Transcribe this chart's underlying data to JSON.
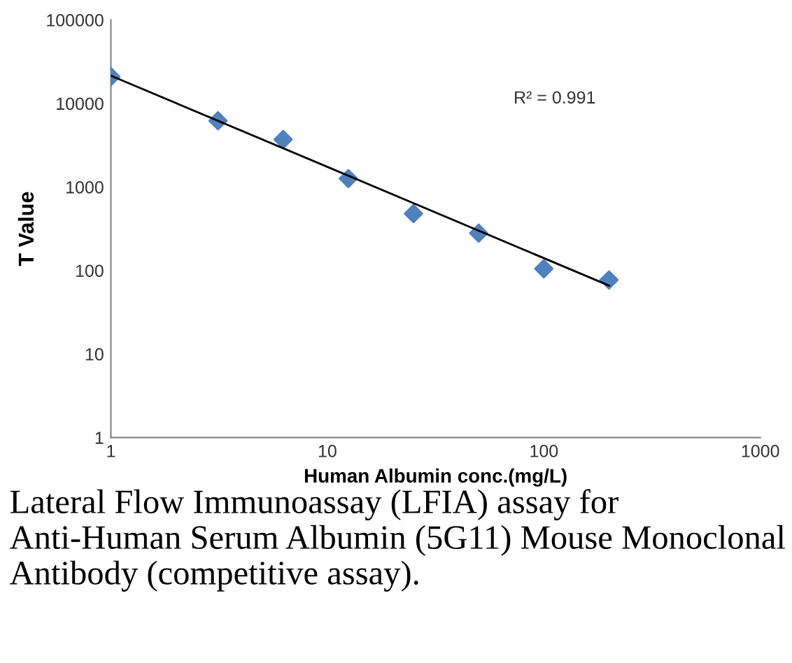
{
  "chart_data": {
    "type": "scatter",
    "xlabel": "Human Albumin conc.(mg/L)",
    "ylabel": "T Value",
    "log": "xy",
    "grid": false,
    "legend": false,
    "xlim": [
      1,
      1000
    ],
    "xticks": [
      1,
      10,
      100,
      1000
    ],
    "ylim": [
      1,
      100000
    ],
    "yticks": [
      1,
      10,
      100,
      1000,
      10000,
      100000
    ],
    "series": [
      {
        "color": "#4f81bd",
        "marker": "diamond",
        "x": [
          1,
          3.125,
          6.25,
          12.5,
          25,
          50,
          100,
          200
        ],
        "values": [
          20900,
          6200,
          3700,
          1260,
          480,
          280,
          105,
          77
        ]
      },
      {
        "type": "line",
        "color": "#000000",
        "line_style": "solid",
        "marker": "none",
        "x": [
          1,
          200
        ],
        "values": [
          21500,
          66
        ]
      }
    ],
    "annotations": [
      "R² = 0.991",
      "Lateral Flow Immunoassay (LFIA) assay for Anti-Human Serum Albumin (5G11) Mouse Monoclonal Antibody (competitive assay)."
    ]
  }
}
